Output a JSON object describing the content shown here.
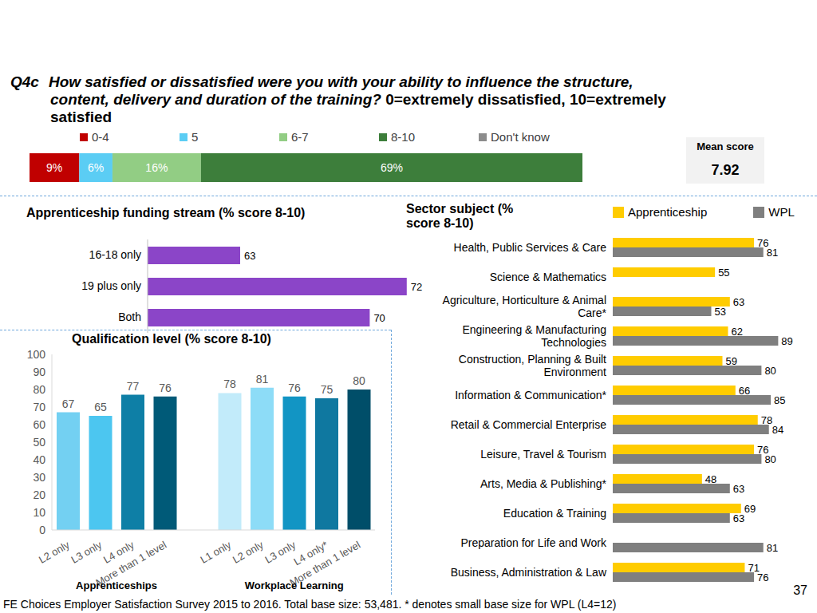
{
  "question_label": "Q4c",
  "question": "How satisfied or dissatisfied were you with your ability to influence the structure, content, delivery and duration of the training?",
  "scale_note": "0=extremely dissatisfied, 10=extremely satisfied",
  "footnote": "FE Choices Employer Satisfaction Survey 2015 to 2016.  Total base size: 53,481. * denotes small base size for WPL (L4=12)",
  "page_number": 37,
  "chart_data": [
    {
      "type": "bar",
      "orientation": "horizontal",
      "stacked": true,
      "categories": [
        null
      ],
      "series": [
        {
          "name": "0-4",
          "color": "#c00000",
          "values": [
            9
          ],
          "value_labels": [
            "9%"
          ]
        },
        {
          "name": "5",
          "color": "#5bcdf4",
          "values": [
            6
          ],
          "value_labels": [
            "6%"
          ]
        },
        {
          "name": "6-7",
          "color": "#92cd84",
          "values": [
            16
          ],
          "value_labels": [
            "16%"
          ]
        },
        {
          "name": "8-10",
          "color": "#3d7e3b",
          "values": [
            69
          ],
          "value_labels": [
            "69%"
          ]
        },
        {
          "name": "Don't know",
          "color": "#8c8c8c",
          "values": [
            0
          ]
        }
      ],
      "xlim": [
        0,
        100
      ],
      "legend": "top",
      "data_labels": true,
      "tick_labels": false,
      "annotation": {
        "label": "Mean score",
        "value": 7.92
      }
    },
    {
      "type": "bar",
      "title": "Apprenticeship funding stream (% score 8-10)",
      "orientation": "horizontal",
      "categories": [
        "16-18 only",
        "19 plus only",
        "Both"
      ],
      "values": [
        63,
        72,
        70
      ],
      "color": "#8b45c8",
      "xlim": [
        58,
        73
      ],
      "data_labels": true,
      "tick_labels": "y"
    },
    {
      "type": "bar",
      "title": "Qualification level (% score 8-10)",
      "categories": [
        "L2 only",
        "L3 only",
        "L4 only",
        "More than 1 level",
        null,
        "L1 only",
        "L2 only",
        "L3 only",
        "L4 only*",
        "More than 1 level"
      ],
      "values": [
        67,
        65,
        77,
        76,
        null,
        78,
        81,
        76,
        75,
        80
      ],
      "colors": [
        "#73d0f2",
        "#4cc6f0",
        "#0e7fa6",
        "#005a78",
        null,
        "#c2ebfa",
        "#8ddcf7",
        "#1295c4",
        "#0f78a0",
        "#004e69"
      ],
      "ylim": [
        0,
        100
      ],
      "yticks": [
        0,
        10,
        20,
        30,
        40,
        50,
        60,
        70,
        80,
        90,
        100
      ],
      "grid": false,
      "data_labels": true,
      "group_labels": [
        "Apprenticeships",
        "Workplace Learning"
      ]
    },
    {
      "type": "bar",
      "title": "Sector subject (% score 8-10)",
      "orientation": "horizontal",
      "categories": [
        "Health, Public Services & Care",
        "Science & Mathematics",
        "Agriculture, Horticulture & Animal Care*",
        "Engineering & Manufacturing Technologies",
        "Construction, Planning & Built Environment",
        "Information & Communication*",
        "Retail & Commercial Enterprise",
        "Leisure, Travel & Tourism",
        "Arts, Media & Publishing*",
        "Education & Training",
        "Preparation for Life and Work",
        "Business, Administration & Law"
      ],
      "series": [
        {
          "name": "Apprenticeship",
          "color": "#ffcc00",
          "values": [
            76,
            55,
            63,
            62,
            59,
            66,
            78,
            76,
            48,
            69,
            0,
            71
          ]
        },
        {
          "name": "WPL",
          "color": "#7f7f7f",
          "values": [
            81,
            0,
            53,
            89,
            80,
            85,
            84,
            80,
            63,
            63,
            81,
            76
          ]
        }
      ],
      "xlim": [
        0,
        100
      ],
      "legend": "top-right",
      "data_labels": true,
      "tick_labels": "y"
    }
  ]
}
